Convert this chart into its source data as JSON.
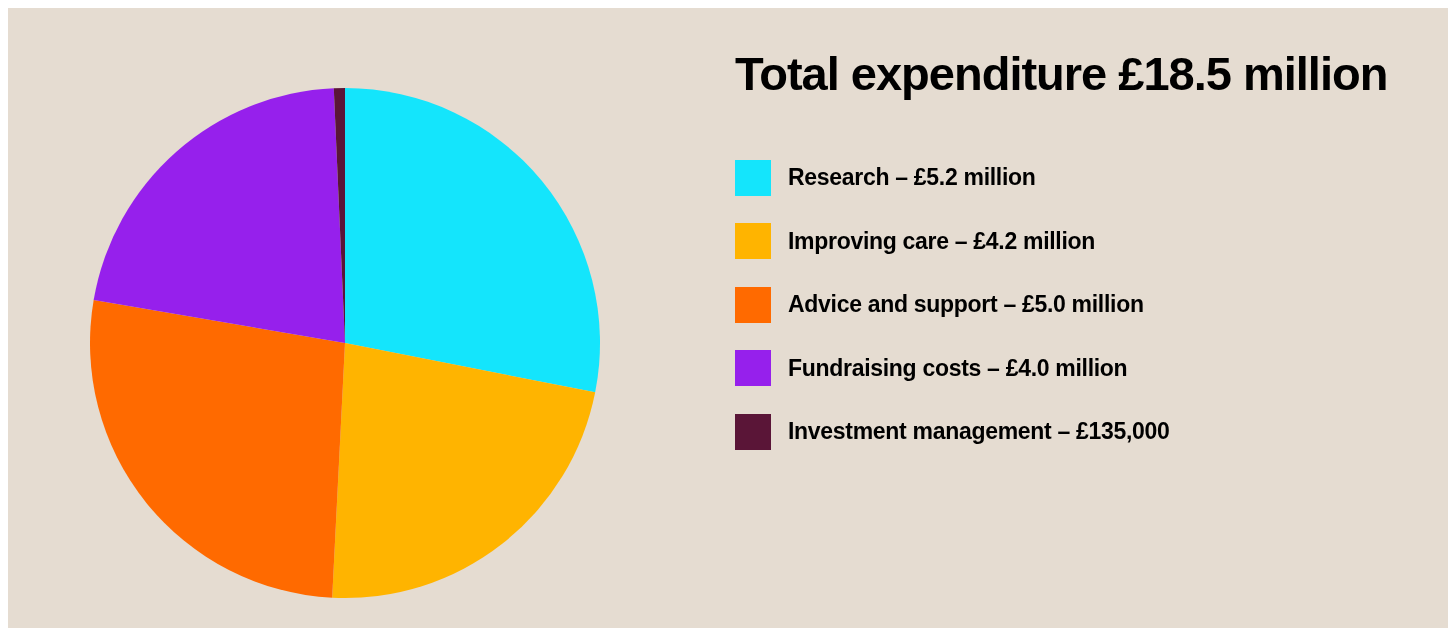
{
  "chart_data": {
    "type": "pie",
    "title": "Total expenditure £18.5 million",
    "categories": [
      "Research – £5.2 million",
      "Improving care – £4.2 million",
      "Advice and support – £5.0 million",
      "Fundraising costs – £4.0 million",
      "Investment management – £135,000"
    ],
    "values": [
      28.1,
      22.7,
      26.9,
      21.6,
      0.7
    ],
    "colors": [
      "#14e5fc",
      "#ffb400",
      "#ff6a00",
      "#9620ec",
      "#5a1537"
    ],
    "legend": "right"
  }
}
